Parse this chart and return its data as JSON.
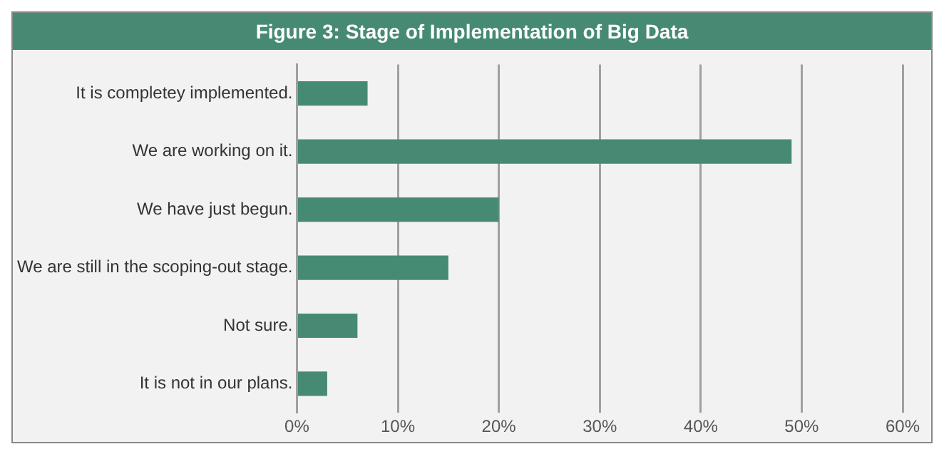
{
  "chart_data": {
    "type": "bar",
    "orientation": "horizontal",
    "title": "Figure 3: Stage of Implementation of Big Data",
    "categories": [
      "It is completey implemented.",
      "We are working on it.",
      "We have just begun.",
      "We are still in the scoping-out stage.",
      "Not sure.",
      "It is not in our plans."
    ],
    "values": [
      7,
      49,
      20,
      15,
      6,
      3
    ],
    "color": "#478a73",
    "xlim": [
      0,
      60
    ],
    "xticks": [
      {
        "value": 0,
        "label": "0%"
      },
      {
        "value": 10,
        "label": "10%"
      },
      {
        "value": 20,
        "label": "20%"
      },
      {
        "value": 30,
        "label": "30%"
      },
      {
        "value": 40,
        "label": "40%"
      },
      {
        "value": 50,
        "label": "50%"
      },
      {
        "value": 60,
        "label": "60%"
      }
    ],
    "grid": "x",
    "legend": false
  }
}
